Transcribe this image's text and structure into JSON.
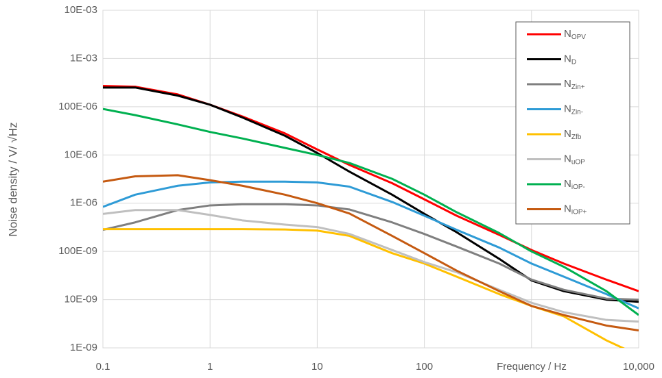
{
  "chart_data": {
    "type": "line",
    "x_label": "Frequency / Hz",
    "y_label": "Noise density / V/  √Hz",
    "x_scale": "log",
    "y_scale": "log",
    "xlim": [
      0.1,
      10000
    ],
    "ylim": [
      1e-09,
      0.01
    ],
    "xgrid": [
      0.1,
      1,
      10,
      100,
      1000,
      10000
    ],
    "xticks": [
      0.1,
      1,
      10,
      100,
      {
        "value": 10000,
        "label": "10,000"
      }
    ],
    "yticks": [
      {
        "value": 1e-09,
        "label": "1E-09"
      },
      {
        "value": 1e-08,
        "label": "10E-09"
      },
      {
        "value": 1e-07,
        "label": "100E-09"
      },
      {
        "value": 1e-06,
        "label": "1E-06"
      },
      {
        "value": 1e-05,
        "label": "10E-06"
      },
      {
        "value": 0.0001,
        "label": "100E-06"
      },
      {
        "value": 0.001,
        "label": "1E-03"
      },
      {
        "value": 0.01,
        "label": "10E-03"
      }
    ],
    "grid": true,
    "legend": "upper right",
    "x": [
      0.1,
      0.2,
      0.5,
      1,
      2,
      5,
      10,
      20,
      50,
      100,
      200,
      500,
      1000,
      2000,
      5000,
      10000
    ],
    "series": [
      {
        "name": "N",
        "subscript": "OPV",
        "color": "#ff0000",
        "values": [
          0.00027,
          0.00026,
          0.00018,
          0.00011,
          6.3e-05,
          2.8e-05,
          1.3e-05,
          6.2e-06,
          2.6e-06,
          1.2e-06,
          5.5e-07,
          2.2e-07,
          1.07e-07,
          5.6e-08,
          2.6e-08,
          1.5e-08
        ]
      },
      {
        "name": "N",
        "subscript": "D",
        "color": "#000000",
        "values": [
          0.00025,
          0.00025,
          0.00017,
          0.00011,
          6e-05,
          2.5e-05,
          1.1e-05,
          4.5e-06,
          1.5e-06,
          6e-07,
          2.5e-07,
          7e-08,
          2.5e-08,
          1.5e-08,
          1e-08,
          9e-09
        ]
      },
      {
        "name": "N",
        "subscript": "Zin+",
        "color": "#7f7f7f",
        "values": [
          2.8e-07,
          4e-07,
          7.2e-07,
          9e-07,
          9.5e-07,
          9.5e-07,
          9e-07,
          7.4e-07,
          4e-07,
          2.3e-07,
          1.26e-07,
          5.6e-08,
          2.6e-08,
          1.6e-08,
          1.05e-08,
          1e-08
        ]
      },
      {
        "name": "N",
        "subscript": "Zin-",
        "color": "#2e9bd6",
        "values": [
          8.4e-07,
          1.5e-06,
          2.3e-06,
          2.7e-06,
          2.8e-06,
          2.8e-06,
          2.7e-06,
          2.2e-06,
          1.06e-06,
          5.5e-07,
          2.8e-07,
          1.2e-07,
          5.6e-08,
          3e-08,
          1.3e-08,
          6.6e-09
        ]
      },
      {
        "name": "N",
        "subscript": "Zfb",
        "color": "#ffc000",
        "values": [
          2.9e-07,
          2.9e-07,
          2.9e-07,
          2.9e-07,
          2.9e-07,
          2.85e-07,
          2.7e-07,
          2.1e-07,
          9.2e-08,
          5.6e-08,
          3e-08,
          1.3e-08,
          7.4e-09,
          4.5e-09,
          1.43e-09,
          7e-10
        ]
      },
      {
        "name": "N",
        "subscript": "uOP",
        "color": "#bfbfbf",
        "values": [
          6e-07,
          7.2e-07,
          7.2e-07,
          5.7e-07,
          4.4e-07,
          3.6e-07,
          3.2e-07,
          2.3e-07,
          1.07e-07,
          6e-08,
          3.7e-08,
          1.6e-08,
          8.6e-09,
          5.5e-09,
          3.8e-09,
          3.5e-09
        ]
      },
      {
        "name": "N",
        "subscript": "iOP-",
        "color": "#00b050",
        "values": [
          9e-05,
          6.7e-05,
          4.3e-05,
          3e-05,
          2.2e-05,
          1.4e-05,
          1e-05,
          6.8e-06,
          3.2e-06,
          1.5e-06,
          6.5e-07,
          2.4e-07,
          1e-07,
          4.8e-08,
          1.5e-08,
          4.8e-09
        ]
      },
      {
        "name": "N",
        "subscript": "iOP+",
        "color": "#c55a11",
        "values": [
          2.8e-06,
          3.6e-06,
          3.8e-06,
          3e-06,
          2.3e-06,
          1.5e-06,
          1e-06,
          6.1e-07,
          2.1e-07,
          9.2e-08,
          4e-08,
          1.5e-08,
          7.4e-09,
          4.8e-09,
          2.9e-09,
          2.3e-09
        ]
      }
    ]
  }
}
